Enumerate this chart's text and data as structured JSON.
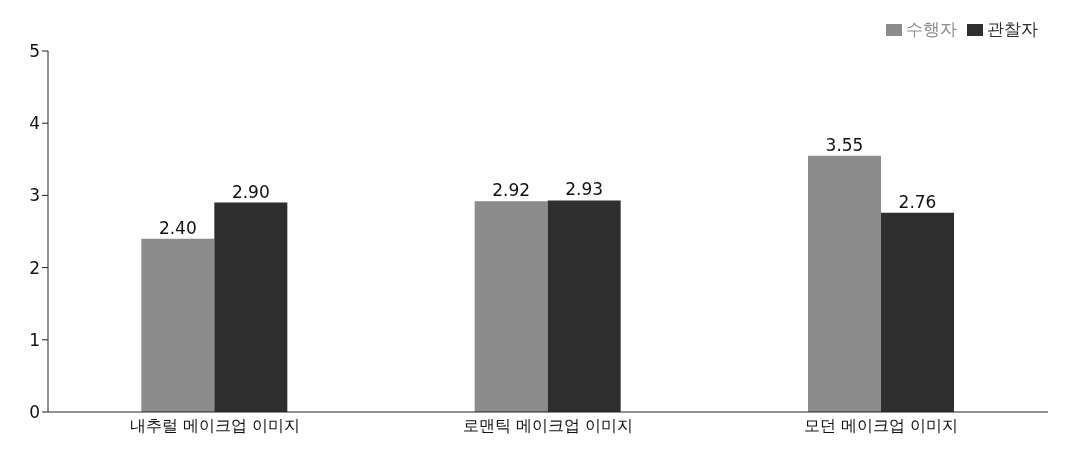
{
  "chart_data": {
    "type": "bar",
    "categories": [
      "내추럴 메이크업 이미지",
      "로맨틱 메이크업 이미지",
      "모던 메이크업 이미지"
    ],
    "series": [
      {
        "name": "수행자",
        "color": "#8c8c8c",
        "values": [
          2.4,
          2.92,
          3.55
        ],
        "value_labels": [
          "2.40",
          "2.92",
          "3.55"
        ]
      },
      {
        "name": "관찰자",
        "color": "#2e2e2e",
        "values": [
          2.9,
          2.93,
          2.76
        ],
        "value_labels": [
          "2.90",
          "2.93",
          "2.76"
        ]
      }
    ],
    "ylim": [
      0,
      5
    ],
    "yticks": [
      0,
      1,
      2,
      3,
      4,
      5
    ],
    "legend": "top right"
  }
}
